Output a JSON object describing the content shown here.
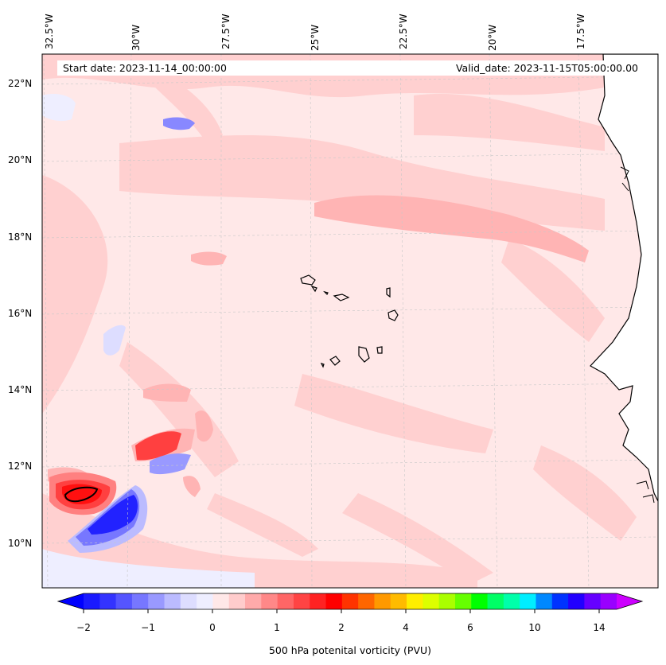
{
  "map": {
    "start_date": "Start date: 2023-11-14_00:00:00",
    "valid_date": "Valid_date: 2023-11-15T05:00:00.00",
    "lon_labels": [
      "32.5°W",
      "30°W",
      "27.5°W",
      "25°W",
      "22.5°W",
      "20°W",
      "17.5°W"
    ],
    "lat_labels": [
      "22°N",
      "20°N",
      "18°N",
      "16°N",
      "14°N",
      "12°N",
      "10°N"
    ],
    "colors": {
      "background": "#ffe8e8",
      "land": "#ffffff",
      "coast": "#000000",
      "grid": "#bbbbbb"
    }
  },
  "colorbar": {
    "title": "500 hPa potenital vorticity (PVU)",
    "tick_labels": [
      "−2",
      "−1",
      "0",
      "1",
      "2",
      "4",
      "6",
      "10",
      "14"
    ],
    "under_color": "#0000ff",
    "over_color": "#cc00ff",
    "colors": [
      "#1a1aff",
      "#3333ff",
      "#5555ff",
      "#7777ff",
      "#9999ff",
      "#bbbbff",
      "#ddddff",
      "#eeeeff",
      "#ffe8e8",
      "#ffcccc",
      "#ffaaaa",
      "#ff8888",
      "#ff6666",
      "#ff4444",
      "#ff2222",
      "#ff0000",
      "#ff3300",
      "#ff6600",
      "#ff9900",
      "#ffbb00",
      "#ffee00",
      "#ddff00",
      "#aaff00",
      "#66ff00",
      "#00ff00",
      "#00ff66",
      "#00ffaa",
      "#00eeff",
      "#0088ff",
      "#0033ff",
      "#2200ff",
      "#6600ff",
      "#9900ff"
    ]
  }
}
